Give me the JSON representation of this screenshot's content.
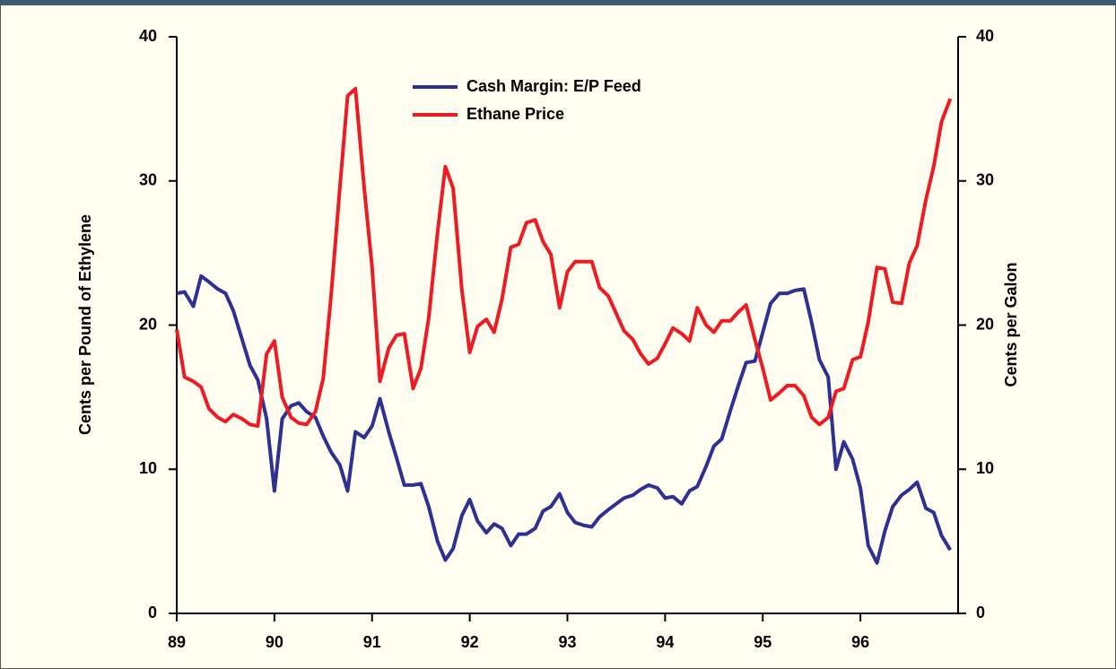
{
  "chart_data": {
    "type": "line",
    "y_label": "Cents per Pound of Ethylene",
    "y2_label": "Cents per Galon",
    "x": [
      89.0,
      89.08,
      89.17,
      89.25,
      89.33,
      89.42,
      89.5,
      89.58,
      89.67,
      89.75,
      89.83,
      89.92,
      90.0,
      90.08,
      90.17,
      90.25,
      90.33,
      90.42,
      90.5,
      90.58,
      90.67,
      90.75,
      90.83,
      90.92,
      91.0,
      91.08,
      91.17,
      91.25,
      91.33,
      91.42,
      91.5,
      91.58,
      91.67,
      91.75,
      91.83,
      91.92,
      92.0,
      92.08,
      92.17,
      92.25,
      92.33,
      92.42,
      92.5,
      92.58,
      92.67,
      92.75,
      92.83,
      92.92,
      93.0,
      93.08,
      93.17,
      93.25,
      93.33,
      93.42,
      93.5,
      93.58,
      93.67,
      93.75,
      93.83,
      93.92,
      94.0,
      94.08,
      94.17,
      94.25,
      94.33,
      94.42,
      94.5,
      94.58,
      94.67,
      94.75,
      94.83,
      94.92,
      95.0,
      95.08,
      95.17,
      95.25,
      95.33,
      95.42,
      95.5,
      95.58,
      95.67,
      95.75,
      95.83,
      95.92,
      96.0,
      96.08,
      96.17,
      96.25,
      96.33,
      96.42,
      96.5,
      96.58,
      96.67,
      96.75,
      96.83,
      96.92
    ],
    "series": [
      {
        "name": "Cash Margin: E/P Feed",
        "color": "#2e3192",
        "values": [
          22.2,
          22.3,
          21.3,
          23.4,
          23.0,
          22.5,
          22.2,
          21.0,
          19.0,
          17.2,
          16.2,
          13.5,
          8.5,
          13.5,
          14.4,
          14.6,
          14.0,
          13.6,
          12.3,
          11.2,
          10.3,
          8.5,
          12.6,
          12.2,
          13.0,
          14.9,
          12.6,
          10.8,
          8.9,
          8.9,
          9.0,
          7.4,
          5.0,
          3.7,
          4.5,
          6.8,
          7.9,
          6.4,
          5.6,
          6.2,
          5.9,
          4.7,
          5.5,
          5.5,
          5.9,
          7.1,
          7.4,
          8.3,
          7.0,
          6.3,
          6.1,
          6.0,
          6.7,
          7.2,
          7.6,
          8.0,
          8.2,
          8.6,
          8.9,
          8.7,
          8.0,
          8.1,
          7.6,
          8.5,
          8.8,
          10.2,
          11.6,
          12.1,
          14.1,
          15.8,
          17.4,
          17.5,
          19.5,
          21.5,
          22.2,
          22.2,
          22.4,
          22.5,
          20.2,
          17.6,
          16.4,
          10.0,
          11.9,
          10.7,
          8.7,
          4.7,
          3.5,
          5.7,
          7.4,
          8.2,
          8.6,
          9.1,
          7.3,
          7.0,
          5.4,
          4.4
        ]
      },
      {
        "name": "Ethane Price",
        "color": "#ed1c24",
        "values": [
          19.7,
          16.4,
          16.1,
          15.7,
          14.2,
          13.6,
          13.3,
          13.8,
          13.5,
          13.1,
          13.0,
          18.0,
          18.9,
          15.0,
          13.6,
          13.2,
          13.1,
          14.0,
          16.3,
          22.0,
          29.5,
          35.9,
          36.4,
          29.5,
          24.0,
          16.1,
          18.4,
          19.3,
          19.4,
          15.6,
          17.0,
          20.5,
          26.4,
          31.0,
          29.5,
          22.4,
          18.1,
          19.9,
          20.4,
          19.5,
          21.8,
          25.4,
          25.6,
          27.1,
          27.3,
          25.8,
          24.9,
          21.2,
          23.7,
          24.4,
          24.4,
          24.4,
          22.6,
          22.0,
          20.8,
          19.6,
          19.0,
          18.0,
          17.3,
          17.7,
          18.7,
          19.8,
          19.4,
          18.9,
          21.2,
          20.0,
          19.5,
          20.3,
          20.3,
          20.9,
          21.4,
          19.0,
          17.0,
          14.8,
          15.3,
          15.8,
          15.8,
          15.1,
          13.6,
          13.1,
          13.6,
          15.4,
          15.6,
          17.6,
          17.8,
          20.2,
          24.0,
          23.9,
          21.6,
          21.5,
          24.3,
          25.5,
          28.7,
          31.0,
          34.1,
          35.7
        ]
      }
    ],
    "xlim": [
      89,
      97
    ],
    "xticks": [
      89,
      90,
      91,
      92,
      93,
      94,
      95,
      96
    ],
    "ylim": [
      0,
      40
    ],
    "yticks": [
      0,
      10,
      20,
      30,
      40
    ],
    "y2lim": [
      0,
      40
    ],
    "y2ticks": [
      0,
      10,
      20,
      30,
      40
    ]
  }
}
